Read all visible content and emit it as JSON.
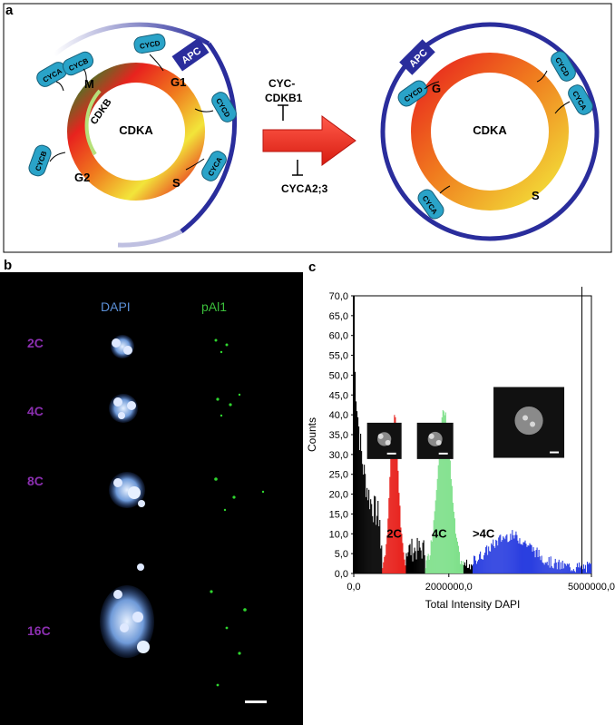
{
  "panel_a": {
    "label": "a",
    "left_cycle": {
      "center": "CDKA",
      "phases": [
        "M",
        "G1",
        "S",
        "G2"
      ],
      "inner": "CDKB",
      "apc": "APC",
      "cyclins": [
        "CYCA",
        "CYCB",
        "CYCD",
        "CYCD",
        "CYCA",
        "CYCB"
      ]
    },
    "inhibitor_top_1": "CYC-",
    "inhibitor_top_2": "CDKB1",
    "inhibitor_bottom": "CYCA2;3",
    "right_cycle": {
      "center": "CDKA",
      "phases": [
        "G",
        "S"
      ],
      "apc": "APC",
      "cyclins": [
        "CYCD",
        "CYCD",
        "CYCA",
        "CYCA"
      ]
    }
  },
  "panel_b": {
    "label": "b",
    "col_dapi": "DAPI",
    "col_pai1": "pAl1",
    "rows": [
      "2C",
      "4C",
      "8C",
      "16C"
    ]
  },
  "panel_c": {
    "label": "c",
    "chart_data": {
      "type": "bar",
      "ylabel": "Counts",
      "xlabel": "Total Intensity DAPI",
      "y_ticks": [
        "0,0",
        "5,0",
        "10,0",
        "15,0",
        "20,0",
        "25,0",
        "30,0",
        "35,0",
        "40,0",
        "45,0",
        "50,0",
        "55,0",
        "60,0",
        "65,0",
        "70,0"
      ],
      "x_ticks": [
        "0,0",
        "2000000,0",
        "5000000,0"
      ],
      "ylim": [
        0,
        70
      ],
      "xlim": [
        0,
        5000000
      ],
      "groups": [
        {
          "name": "2C",
          "color": "#e8231e",
          "x_start": 600000,
          "x_end": 1100000,
          "peak_x": 850000,
          "peak": 38
        },
        {
          "name": "4C",
          "color": "#7ee08a",
          "x_start": 1500000,
          "x_end": 2300000,
          "peak_x": 1900000,
          "peak": 39
        },
        {
          "name": ">4C",
          "color": "#2b3fe0",
          "x_start": 2500000,
          "x_end": 5000000,
          "peak_x": 3300000,
          "peak": 8
        }
      ]
    }
  }
}
